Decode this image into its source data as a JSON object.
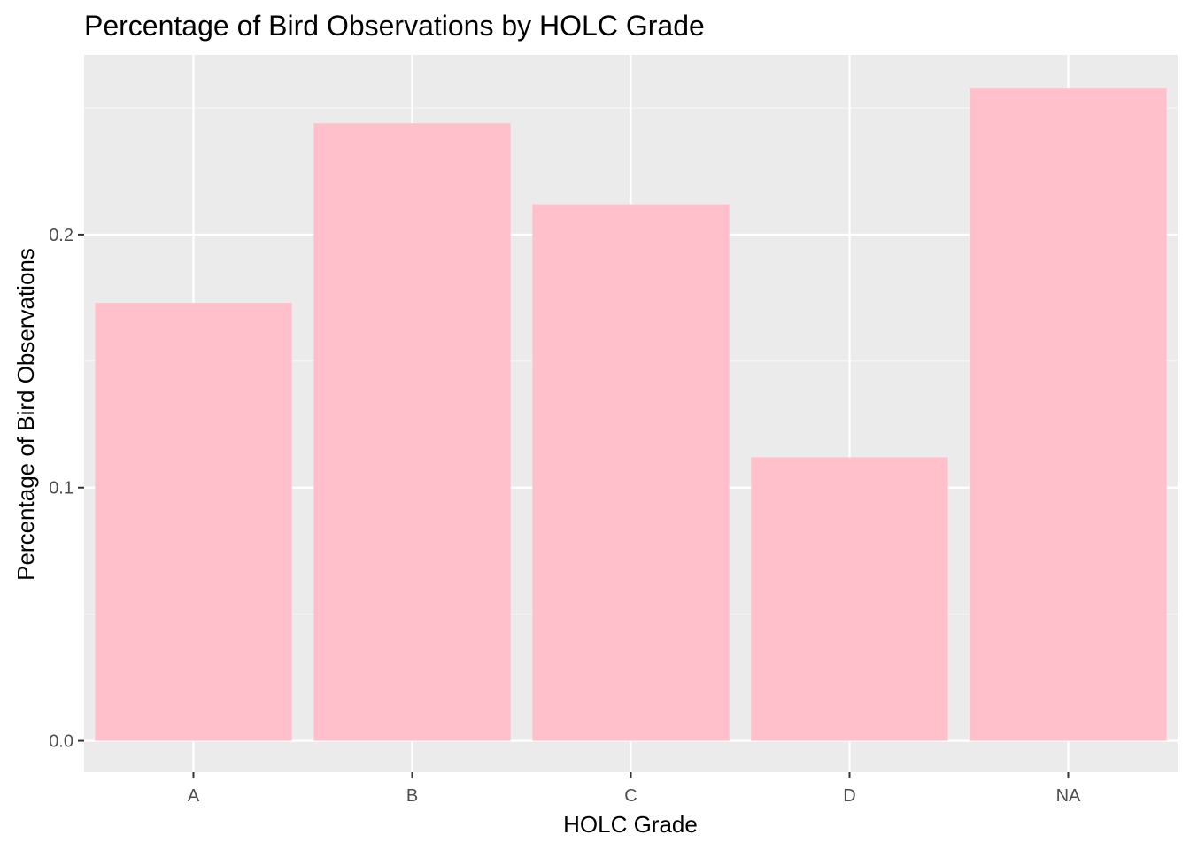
{
  "chart_data": {
    "type": "bar",
    "title": "Percentage of Bird Observations by HOLC Grade",
    "xlabel": "HOLC Grade",
    "ylabel": "Percentage of Bird Observations",
    "categories": [
      "A",
      "B",
      "C",
      "D",
      "NA"
    ],
    "values": [
      0.173,
      0.244,
      0.212,
      0.112,
      0.258
    ],
    "ylim": [
      -0.0124,
      0.271
    ],
    "yticks": [
      0.0,
      0.1,
      0.2
    ],
    "ytick_labels": [
      "0.0",
      "0.1",
      "0.2"
    ],
    "grid": true,
    "legend": "none",
    "colors": {
      "bar": "#ffc0cb",
      "panel_background": "#ebebeb",
      "grid_major": "#ffffff",
      "grid_minor": "#f7f7f7",
      "tick_text": "#4d4d4d",
      "tick_mark": "#333333"
    }
  }
}
